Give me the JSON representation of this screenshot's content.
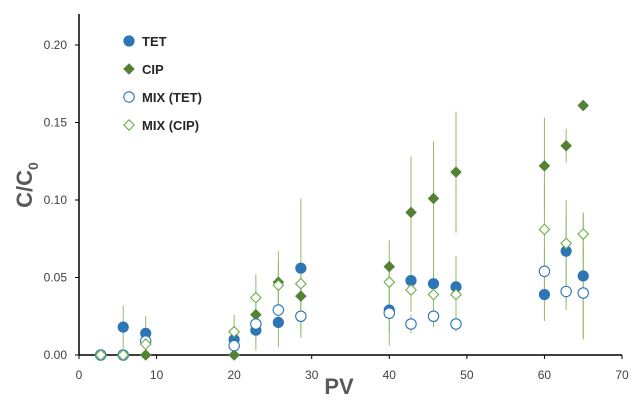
{
  "chart_data": {
    "type": "scatter",
    "title": "",
    "xlabel": "PV",
    "ylabel": "C/C",
    "ylabel_subscript": "0",
    "xlim": [
      0,
      70
    ],
    "ylim": [
      0,
      0.22
    ],
    "x_ticks": [
      0,
      10,
      20,
      30,
      40,
      50,
      60,
      70
    ],
    "y_ticks": [
      0.0,
      0.05,
      0.1,
      0.15,
      0.2
    ],
    "x_tick_labels": [
      "0",
      "10",
      "20",
      "30",
      "40",
      "50",
      "60",
      "70"
    ],
    "y_tick_labels": [
      "0.00",
      "0.05",
      "0.10",
      "0.15",
      "0.20"
    ],
    "grid": false,
    "legend_position": "top-left",
    "error_bar_color": "#8fbc6a",
    "series": [
      {
        "name": "TET",
        "marker": "circle",
        "filled": true,
        "color": "#2e75b6",
        "points": [
          {
            "x": 2.8,
            "y": 0.0,
            "err": 0
          },
          {
            "x": 5.7,
            "y": 0.018,
            "err": 0.014
          },
          {
            "x": 8.6,
            "y": 0.014,
            "err": 0.011
          },
          {
            "x": 20.0,
            "y": 0.01,
            "err": 0.006
          },
          {
            "x": 22.8,
            "y": 0.016,
            "err": 0.013
          },
          {
            "x": 25.7,
            "y": 0.021,
            "err": 0.016
          },
          {
            "x": 28.6,
            "y": 0.056,
            "err": 0.045
          },
          {
            "x": 40.0,
            "y": 0.029,
            "err": 0.023
          },
          {
            "x": 42.8,
            "y": 0.048,
            "err": 0.02
          },
          {
            "x": 45.7,
            "y": 0.046,
            "err": 0.018
          },
          {
            "x": 48.6,
            "y": 0.044,
            "err": 0.02
          },
          {
            "x": 60.0,
            "y": 0.039,
            "err": 0.017
          },
          {
            "x": 62.8,
            "y": 0.067,
            "err": 0.033
          },
          {
            "x": 65.0,
            "y": 0.051,
            "err": 0.04
          }
        ]
      },
      {
        "name": "CIP",
        "marker": "diamond",
        "filled": true,
        "color": "#548235",
        "points": [
          {
            "x": 2.8,
            "y": 0.0,
            "err": 0
          },
          {
            "x": 5.7,
            "y": 0.0,
            "err": 0
          },
          {
            "x": 8.6,
            "y": 0.0,
            "err": 0
          },
          {
            "x": 20.0,
            "y": 0.0,
            "err": 0
          },
          {
            "x": 22.8,
            "y": 0.026,
            "err": 0.01
          },
          {
            "x": 25.7,
            "y": 0.047,
            "err": 0.02
          },
          {
            "x": 28.6,
            "y": 0.038,
            "err": 0.01
          },
          {
            "x": 40.0,
            "y": 0.057,
            "err": 0.017
          },
          {
            "x": 42.8,
            "y": 0.092,
            "err": 0.036
          },
          {
            "x": 45.7,
            "y": 0.101,
            "err": 0.037
          },
          {
            "x": 48.6,
            "y": 0.118,
            "err": 0.039
          },
          {
            "x": 60.0,
            "y": 0.122,
            "err": 0.031
          },
          {
            "x": 62.8,
            "y": 0.135,
            "err": 0.011
          },
          {
            "x": 65.0,
            "y": 0.161,
            "err": 0
          }
        ]
      },
      {
        "name": "MIX (TET)",
        "marker": "circle",
        "filled": false,
        "color": "#2e75b6",
        "points": [
          {
            "x": 2.8,
            "y": 0.0,
            "err": 0
          },
          {
            "x": 5.7,
            "y": 0.0,
            "err": 0
          },
          {
            "x": 8.6,
            "y": 0.009,
            "err": 0.005
          },
          {
            "x": 20.0,
            "y": 0.006,
            "err": 0.004
          },
          {
            "x": 22.8,
            "y": 0.02,
            "err": 0.01
          },
          {
            "x": 25.7,
            "y": 0.029,
            "err": 0.012
          },
          {
            "x": 28.6,
            "y": 0.025,
            "err": 0.01
          },
          {
            "x": 40.0,
            "y": 0.027,
            "err": 0.012
          },
          {
            "x": 42.8,
            "y": 0.02,
            "err": 0.006
          },
          {
            "x": 45.7,
            "y": 0.025,
            "err": 0.007
          },
          {
            "x": 48.6,
            "y": 0.02,
            "err": 0.005
          },
          {
            "x": 60.0,
            "y": 0.054,
            "err": 0.016
          },
          {
            "x": 62.8,
            "y": 0.041,
            "err": 0.012
          },
          {
            "x": 65.0,
            "y": 0.04,
            "err": 0.03
          }
        ]
      },
      {
        "name": "MIX (CIP)",
        "marker": "diamond",
        "filled": false,
        "color": "#70ad47",
        "points": [
          {
            "x": 2.8,
            "y": 0.0,
            "err": 0
          },
          {
            "x": 5.7,
            "y": 0.0,
            "err": 0
          },
          {
            "x": 8.6,
            "y": 0.007,
            "err": 0.003
          },
          {
            "x": 20.0,
            "y": 0.015,
            "err": 0.011
          },
          {
            "x": 22.8,
            "y": 0.037,
            "err": 0.015
          },
          {
            "x": 25.7,
            "y": 0.045,
            "err": 0.015
          },
          {
            "x": 28.6,
            "y": 0.046,
            "err": 0.012
          },
          {
            "x": 40.0,
            "y": 0.047,
            "err": 0.014
          },
          {
            "x": 42.8,
            "y": 0.042,
            "err": 0.012
          },
          {
            "x": 45.7,
            "y": 0.039,
            "err": 0.011
          },
          {
            "x": 48.6,
            "y": 0.039,
            "err": 0.01
          },
          {
            "x": 60.0,
            "y": 0.081,
            "err": 0.031
          },
          {
            "x": 62.8,
            "y": 0.072,
            "err": 0.018
          },
          {
            "x": 65.0,
            "y": 0.078,
            "err": 0.014
          }
        ]
      }
    ]
  }
}
